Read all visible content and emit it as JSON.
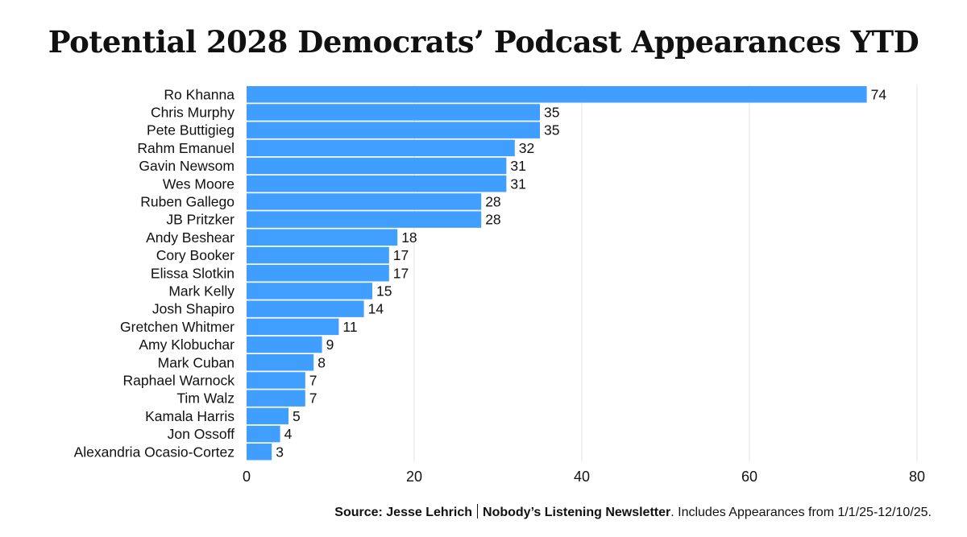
{
  "chart_data": {
    "type": "bar",
    "orientation": "horizontal",
    "title": "Potential 2028 Democrats’ Podcast Appearances YTD",
    "categories": [
      "Ro Khanna",
      "Chris Murphy",
      "Pete Buttigieg",
      "Rahm Emanuel",
      "Gavin Newsom",
      "Wes Moore",
      "Ruben Gallego",
      "JB Pritzker",
      "Andy Beshear",
      "Cory Booker",
      "Elissa Slotkin",
      "Mark Kelly",
      "Josh Shapiro",
      "Gretchen Whitmer",
      "Amy Klobuchar",
      "Mark Cuban",
      "Raphael Warnock",
      "Tim Walz",
      "Kamala Harris",
      "Jon Ossoff",
      "Alexandria Ocasio-Cortez"
    ],
    "values": [
      74,
      35,
      35,
      32,
      31,
      31,
      28,
      28,
      18,
      17,
      17,
      15,
      14,
      11,
      9,
      8,
      7,
      7,
      5,
      4,
      3
    ],
    "xlim": [
      0,
      80
    ],
    "xticks": [
      0,
      20,
      40,
      60,
      80
    ],
    "xlabel": "",
    "ylabel": "",
    "grid": true,
    "bar_color": "#409EFF"
  },
  "footer": {
    "source": "Source: Jesse Lehrich",
    "newsletter": "Nobody’s Listening Newsletter",
    "note": ". Includes Appearances from 1/1/25-12/10/25."
  }
}
